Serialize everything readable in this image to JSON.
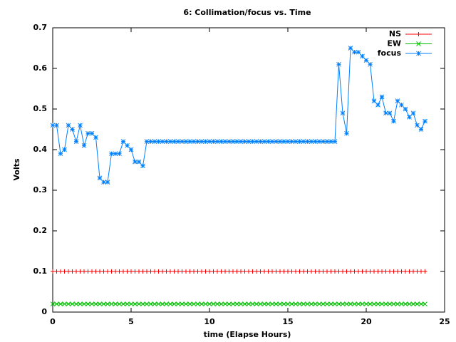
{
  "chart_data": {
    "type": "line",
    "title": "6: Collimation/focus vs. Time",
    "xlabel": "time (Elapse Hours)",
    "ylabel": "Volts",
    "x": [
      0,
      0.25,
      0.5,
      0.75,
      1,
      1.25,
      1.5,
      1.75,
      2,
      2.25,
      2.5,
      2.75,
      3,
      3.25,
      3.5,
      3.75,
      4,
      4.25,
      4.5,
      4.75,
      5,
      5.25,
      5.5,
      5.75,
      6,
      6.25,
      6.5,
      6.75,
      7,
      7.25,
      7.5,
      7.75,
      8,
      8.25,
      8.5,
      8.75,
      9,
      9.25,
      9.5,
      9.75,
      10,
      10.25,
      10.5,
      10.75,
      11,
      11.25,
      11.5,
      11.75,
      12,
      12.25,
      12.5,
      12.75,
      13,
      13.25,
      13.5,
      13.75,
      14,
      14.25,
      14.5,
      14.75,
      15,
      15.25,
      15.5,
      15.75,
      16,
      16.25,
      16.5,
      16.75,
      17,
      17.25,
      17.5,
      17.75,
      18,
      18.25,
      18.5,
      18.75,
      19,
      19.25,
      19.5,
      19.75,
      20,
      20.25,
      20.5,
      20.75,
      21,
      21.25,
      21.5,
      21.75,
      22,
      22.25,
      22.5,
      22.75,
      23,
      23.25,
      23.5,
      23.75
    ],
    "series": [
      {
        "name": "NS",
        "color": "#ff0000",
        "marker": "plus",
        "values": [
          0.1,
          0.1,
          0.1,
          0.1,
          0.1,
          0.1,
          0.1,
          0.1,
          0.1,
          0.1,
          0.1,
          0.1,
          0.1,
          0.1,
          0.1,
          0.1,
          0.1,
          0.1,
          0.1,
          0.1,
          0.1,
          0.1,
          0.1,
          0.1,
          0.1,
          0.1,
          0.1,
          0.1,
          0.1,
          0.1,
          0.1,
          0.1,
          0.1,
          0.1,
          0.1,
          0.1,
          0.1,
          0.1,
          0.1,
          0.1,
          0.1,
          0.1,
          0.1,
          0.1,
          0.1,
          0.1,
          0.1,
          0.1,
          0.1,
          0.1,
          0.1,
          0.1,
          0.1,
          0.1,
          0.1,
          0.1,
          0.1,
          0.1,
          0.1,
          0.1,
          0.1,
          0.1,
          0.1,
          0.1,
          0.1,
          0.1,
          0.1,
          0.1,
          0.1,
          0.1,
          0.1,
          0.1,
          0.1,
          0.1,
          0.1,
          0.1,
          0.1,
          0.1,
          0.1,
          0.1,
          0.1,
          0.1,
          0.1,
          0.1,
          0.1,
          0.1,
          0.1,
          0.1,
          0.1,
          0.1,
          0.1,
          0.1,
          0.1,
          0.1,
          0.1,
          0.1
        ]
      },
      {
        "name": "EW",
        "color": "#00c000",
        "marker": "cross",
        "values": [
          0.02,
          0.02,
          0.02,
          0.02,
          0.02,
          0.02,
          0.02,
          0.02,
          0.02,
          0.02,
          0.02,
          0.02,
          0.02,
          0.02,
          0.02,
          0.02,
          0.02,
          0.02,
          0.02,
          0.02,
          0.02,
          0.02,
          0.02,
          0.02,
          0.02,
          0.02,
          0.02,
          0.02,
          0.02,
          0.02,
          0.02,
          0.02,
          0.02,
          0.02,
          0.02,
          0.02,
          0.02,
          0.02,
          0.02,
          0.02,
          0.02,
          0.02,
          0.02,
          0.02,
          0.02,
          0.02,
          0.02,
          0.02,
          0.02,
          0.02,
          0.02,
          0.02,
          0.02,
          0.02,
          0.02,
          0.02,
          0.02,
          0.02,
          0.02,
          0.02,
          0.02,
          0.02,
          0.02,
          0.02,
          0.02,
          0.02,
          0.02,
          0.02,
          0.02,
          0.02,
          0.02,
          0.02,
          0.02,
          0.02,
          0.02,
          0.02,
          0.02,
          0.02,
          0.02,
          0.02,
          0.02,
          0.02,
          0.02,
          0.02,
          0.02,
          0.02,
          0.02,
          0.02,
          0.02,
          0.02,
          0.02,
          0.02,
          0.02,
          0.02,
          0.02,
          0.02
        ]
      },
      {
        "name": "focus",
        "color": "#0080ff",
        "marker": "star",
        "values": [
          0.46,
          0.46,
          0.39,
          0.4,
          0.46,
          0.45,
          0.42,
          0.46,
          0.41,
          0.44,
          0.44,
          0.43,
          0.33,
          0.32,
          0.32,
          0.39,
          0.39,
          0.39,
          0.42,
          0.41,
          0.4,
          0.37,
          0.37,
          0.36,
          0.42,
          0.42,
          0.42,
          0.42,
          0.42,
          0.42,
          0.42,
          0.42,
          0.42,
          0.42,
          0.42,
          0.42,
          0.42,
          0.42,
          0.42,
          0.42,
          0.42,
          0.42,
          0.42,
          0.42,
          0.42,
          0.42,
          0.42,
          0.42,
          0.42,
          0.42,
          0.42,
          0.42,
          0.42,
          0.42,
          0.42,
          0.42,
          0.42,
          0.42,
          0.42,
          0.42,
          0.42,
          0.42,
          0.42,
          0.42,
          0.42,
          0.42,
          0.42,
          0.42,
          0.42,
          0.42,
          0.42,
          0.42,
          0.42,
          0.61,
          0.49,
          0.44,
          0.65,
          0.64,
          0.64,
          0.63,
          0.62,
          0.61,
          0.52,
          0.51,
          0.53,
          0.49,
          0.49,
          0.47,
          0.52,
          0.51,
          0.5,
          0.48,
          0.49,
          0.46,
          0.45,
          0.47
        ]
      }
    ],
    "xlim": [
      0,
      25
    ],
    "xticks": [
      0,
      5,
      10,
      15,
      20,
      25
    ],
    "ylim": [
      0,
      0.7
    ],
    "yticks": [
      0,
      0.1,
      0.2,
      0.3,
      0.4,
      0.5,
      0.6,
      0.7
    ],
    "grid": false,
    "legend": "top right"
  }
}
